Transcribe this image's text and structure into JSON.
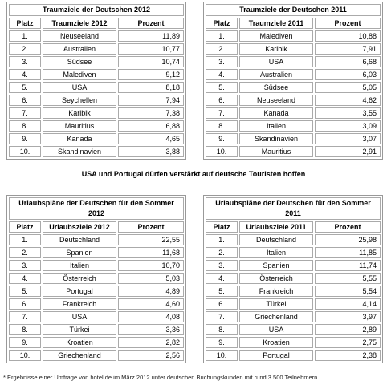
{
  "tables": [
    {
      "title": "Traumziele der Deutschen 2012",
      "headers": [
        "Platz",
        "Traumziele 2012",
        "Prozent"
      ],
      "rows": [
        [
          "1.",
          "Neuseeland",
          "11,89"
        ],
        [
          "2.",
          "Australien",
          "10,77"
        ],
        [
          "3.",
          "Südsee",
          "10,74"
        ],
        [
          "4.",
          "Malediven",
          "9,12"
        ],
        [
          "5.",
          "USA",
          "8,18"
        ],
        [
          "6.",
          "Seychellen",
          "7,94"
        ],
        [
          "7.",
          "Karibik",
          "7,38"
        ],
        [
          "8.",
          "Mauritius",
          "6,88"
        ],
        [
          "9.",
          "Kanada",
          "4,65"
        ],
        [
          "10.",
          "Skandinavien",
          "3,88"
        ]
      ]
    },
    {
      "title": "Traumziele der Deutschen 2011",
      "headers": [
        "Platz",
        "Traumziele 2011",
        "Prozent"
      ],
      "rows": [
        [
          "1.",
          "Malediven",
          "10,88"
        ],
        [
          "2.",
          "Karibik",
          "7,91"
        ],
        [
          "3.",
          "USA",
          "6,68"
        ],
        [
          "4.",
          "Australien",
          "6,03"
        ],
        [
          "5.",
          "Südsee",
          "5,05"
        ],
        [
          "6.",
          "Neuseeland",
          "4,62"
        ],
        [
          "7.",
          "Kanada",
          "3,55"
        ],
        [
          "8.",
          "Italien",
          "3,09"
        ],
        [
          "9.",
          "Skandinavien",
          "3,07"
        ],
        [
          "10.",
          "Mauritius",
          "2,91"
        ]
      ]
    },
    {
      "title": "Urlaubspläne der Deutschen für den Sommer 2012",
      "headers": [
        "Platz",
        "Urlaubsziele 2012",
        "Prozent"
      ],
      "rows": [
        [
          "1.",
          "Deutschland",
          "22,55"
        ],
        [
          "2.",
          "Spanien",
          "11,68"
        ],
        [
          "3.",
          "Italien",
          "10,70"
        ],
        [
          "4.",
          "Österreich",
          "5,03"
        ],
        [
          "5.",
          "Portugal",
          "4,89"
        ],
        [
          "6.",
          "Frankreich",
          "4,60"
        ],
        [
          "7.",
          "USA",
          "4,08"
        ],
        [
          "8.",
          "Türkei",
          "3,36"
        ],
        [
          "9.",
          "Kroatien",
          "2,82"
        ],
        [
          "10.",
          "Griechenland",
          "2,56"
        ]
      ]
    },
    {
      "title": "Urlaubspläne der Deutschen für den Sommer 2011",
      "headers": [
        "Platz",
        "Urlaubsziele 2011",
        "Prozent"
      ],
      "rows": [
        [
          "1.",
          "Deutschland",
          "25,98"
        ],
        [
          "2.",
          "Italien",
          "11,85"
        ],
        [
          "3.",
          "Spanien",
          "11,74"
        ],
        [
          "4.",
          "Österreich",
          "5,55"
        ],
        [
          "5.",
          "Frankreich",
          "5,54"
        ],
        [
          "6.",
          "Türkei",
          "4,14"
        ],
        [
          "7.",
          "Griechenland",
          "3,97"
        ],
        [
          "8.",
          "USA",
          "2,89"
        ],
        [
          "9.",
          "Kroatien",
          "2,75"
        ],
        [
          "10.",
          "Portugal",
          "2,38"
        ]
      ]
    }
  ],
  "caption": "USA und Portugal dürfen verstärkt auf deutsche Touristen hoffen",
  "footnote": "* Ergebnisse einer Umfrage von hotel.de im März 2012 unter deutschen Buchungskunden mit rund 3.500 Teilnehmern."
}
